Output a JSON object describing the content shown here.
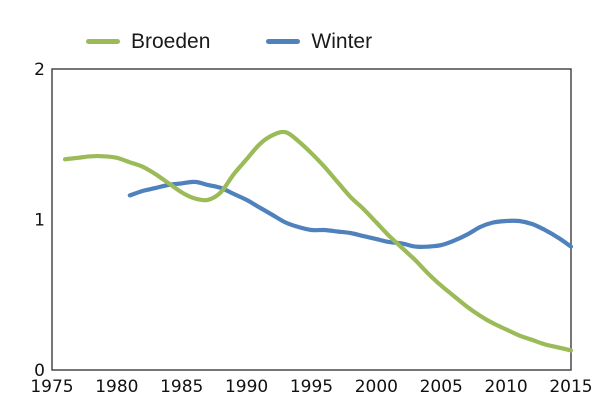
{
  "chart_data": {
    "type": "line",
    "title": "",
    "xlabel": "",
    "ylabel": "",
    "xlim": [
      1975,
      2015
    ],
    "ylim": [
      0,
      2
    ],
    "x_ticks": [
      1975,
      1980,
      1985,
      1990,
      1995,
      2000,
      2005,
      2010,
      2015
    ],
    "y_ticks": [
      0,
      1,
      2
    ],
    "grid": false,
    "legend_position": "top",
    "frame_color": "#3c3c3c",
    "tick_label_color": "#111111",
    "line_width": 4.2,
    "series": [
      {
        "name": "Broeden",
        "color": "#9bbb59",
        "x": [
          1976,
          1977,
          1978,
          1979,
          1980,
          1981,
          1982,
          1983,
          1984,
          1985,
          1986,
          1987,
          1988,
          1989,
          1990,
          1991,
          1992,
          1993,
          1994,
          1995,
          1996,
          1997,
          1998,
          1999,
          2000,
          2001,
          2002,
          2003,
          2004,
          2005,
          2006,
          2007,
          2008,
          2009,
          2010,
          2011,
          2012,
          2013,
          2014,
          2015
        ],
        "values": [
          1.4,
          1.41,
          1.42,
          1.42,
          1.41,
          1.38,
          1.35,
          1.3,
          1.24,
          1.18,
          1.14,
          1.13,
          1.18,
          1.3,
          1.4,
          1.5,
          1.56,
          1.58,
          1.52,
          1.44,
          1.35,
          1.25,
          1.15,
          1.07,
          0.98,
          0.89,
          0.81,
          0.73,
          0.64,
          0.56,
          0.49,
          0.42,
          0.36,
          0.31,
          0.27,
          0.23,
          0.2,
          0.17,
          0.15,
          0.13
        ]
      },
      {
        "name": "Winter",
        "color": "#4f81bd",
        "x": [
          1981,
          1982,
          1983,
          1984,
          1985,
          1986,
          1987,
          1988,
          1989,
          1990,
          1991,
          1992,
          1993,
          1994,
          1995,
          1996,
          1997,
          1998,
          1999,
          2000,
          2001,
          2002,
          2003,
          2004,
          2005,
          2006,
          2007,
          2008,
          2009,
          2010,
          2011,
          2012,
          2013,
          2014,
          2015
        ],
        "values": [
          1.16,
          1.19,
          1.21,
          1.23,
          1.24,
          1.25,
          1.23,
          1.21,
          1.17,
          1.13,
          1.08,
          1.03,
          0.98,
          0.95,
          0.93,
          0.93,
          0.92,
          0.91,
          0.89,
          0.87,
          0.85,
          0.84,
          0.82,
          0.82,
          0.83,
          0.86,
          0.9,
          0.95,
          0.98,
          0.99,
          0.99,
          0.97,
          0.93,
          0.88,
          0.82
        ]
      }
    ]
  }
}
